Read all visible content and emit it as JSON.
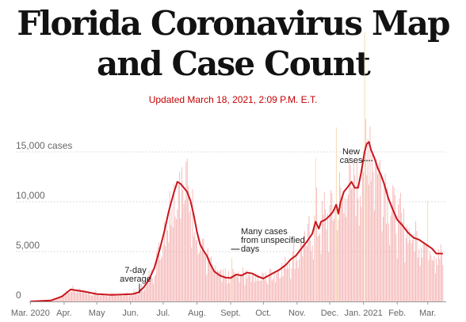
{
  "page": {
    "title": "Florida Coronavirus Map and Case Count",
    "updated": "Updated March 18, 2021, 2:09 P.M. E.T."
  },
  "chart_data": {
    "type": "bar",
    "subtype": "daily bars with 7-day average line",
    "title": "",
    "xlabel": "",
    "ylabel": "",
    "ylim": [
      0,
      20000
    ],
    "y_ticks": [
      {
        "value": 0,
        "label": "0"
      },
      {
        "value": 5000,
        "label": "5,000"
      },
      {
        "value": 10000,
        "label": "10,000"
      },
      {
        "value": 15000,
        "label": "15,000 cases"
      }
    ],
    "x_ticks": [
      {
        "day": 1,
        "label": "Mar. 2020"
      },
      {
        "day": 32,
        "label": "Apr."
      },
      {
        "day": 62,
        "label": "May"
      },
      {
        "day": 93,
        "label": "Jun."
      },
      {
        "day": 123,
        "label": "Jul."
      },
      {
        "day": 154,
        "label": "Aug."
      },
      {
        "day": 185,
        "label": "Sept."
      },
      {
        "day": 215,
        "label": "Oct."
      },
      {
        "day": 246,
        "label": "Nov."
      },
      {
        "day": 276,
        "label": "Dec."
      },
      {
        "day": 307,
        "label": "Jan. 2021"
      },
      {
        "day": 338,
        "label": "Feb."
      },
      {
        "day": 366,
        "label": "Mar."
      }
    ],
    "x_domain": [
      0,
      383
    ],
    "grid": true,
    "colors": {
      "bars": "#f5b5b5",
      "spike_bars": "#f7d8a8",
      "average_line": "#c8161d",
      "grid": "#dcdcdc",
      "axis_text": "#666666",
      "annotation_text": "#222222"
    },
    "series": [
      {
        "name": "7-day average",
        "kind": "line",
        "points": [
          [
            1,
            0
          ],
          [
            20,
            100
          ],
          [
            30,
            500
          ],
          [
            38,
            1200
          ],
          [
            50,
            1000
          ],
          [
            62,
            750
          ],
          [
            75,
            650
          ],
          [
            85,
            700
          ],
          [
            95,
            750
          ],
          [
            100,
            900
          ],
          [
            105,
            1400
          ],
          [
            110,
            2200
          ],
          [
            115,
            3400
          ],
          [
            120,
            5300
          ],
          [
            124,
            7000
          ],
          [
            128,
            9000
          ],
          [
            131,
            10200
          ],
          [
            133,
            11000
          ],
          [
            136,
            12000
          ],
          [
            139,
            11800
          ],
          [
            142,
            11400
          ],
          [
            145,
            11000
          ],
          [
            148,
            10100
          ],
          [
            151,
            8700
          ],
          [
            154,
            7000
          ],
          [
            157,
            5700
          ],
          [
            160,
            5100
          ],
          [
            163,
            4600
          ],
          [
            166,
            3800
          ],
          [
            170,
            3000
          ],
          [
            175,
            2600
          ],
          [
            180,
            2400
          ],
          [
            185,
            2350
          ],
          [
            190,
            2700
          ],
          [
            195,
            2600
          ],
          [
            200,
            2900
          ],
          [
            205,
            2800
          ],
          [
            210,
            2500
          ],
          [
            215,
            2300
          ],
          [
            220,
            2600
          ],
          [
            225,
            2900
          ],
          [
            230,
            3200
          ],
          [
            236,
            3700
          ],
          [
            240,
            4200
          ],
          [
            245,
            4600
          ],
          [
            250,
            5300
          ],
          [
            255,
            6000
          ],
          [
            260,
            6800
          ],
          [
            263,
            8000
          ],
          [
            266,
            7300
          ],
          [
            268,
            8000
          ],
          [
            272,
            8200
          ],
          [
            276,
            8600
          ],
          [
            279,
            9000
          ],
          [
            282,
            9700
          ],
          [
            284,
            8800
          ],
          [
            286,
            10000
          ],
          [
            289,
            11000
          ],
          [
            292,
            11400
          ],
          [
            296,
            12000
          ],
          [
            299,
            11400
          ],
          [
            302,
            11400
          ],
          [
            305,
            13000
          ],
          [
            308,
            15000
          ],
          [
            310,
            15800
          ],
          [
            312,
            16000
          ],
          [
            314,
            15200
          ],
          [
            317,
            14400
          ],
          [
            320,
            13400
          ],
          [
            323,
            12700
          ],
          [
            326,
            11800
          ],
          [
            330,
            10300
          ],
          [
            334,
            9200
          ],
          [
            338,
            8200
          ],
          [
            343,
            7600
          ],
          [
            348,
            6900
          ],
          [
            353,
            6400
          ],
          [
            358,
            6200
          ],
          [
            362,
            5900
          ],
          [
            366,
            5600
          ],
          [
            370,
            5300
          ],
          [
            374,
            4800
          ],
          [
            380,
            4800
          ]
        ]
      }
    ],
    "annotations": [
      {
        "lines": [
          "7-day",
          "average"
        ],
        "day": 99,
        "value": 900
      },
      {
        "lines": [
          "Many cases",
          "from unspecified",
          "days"
        ],
        "day": 186,
        "value": 7300
      },
      {
        "lines": [
          "New",
          "cases"
        ],
        "day": 316,
        "value": 18600
      }
    ]
  }
}
